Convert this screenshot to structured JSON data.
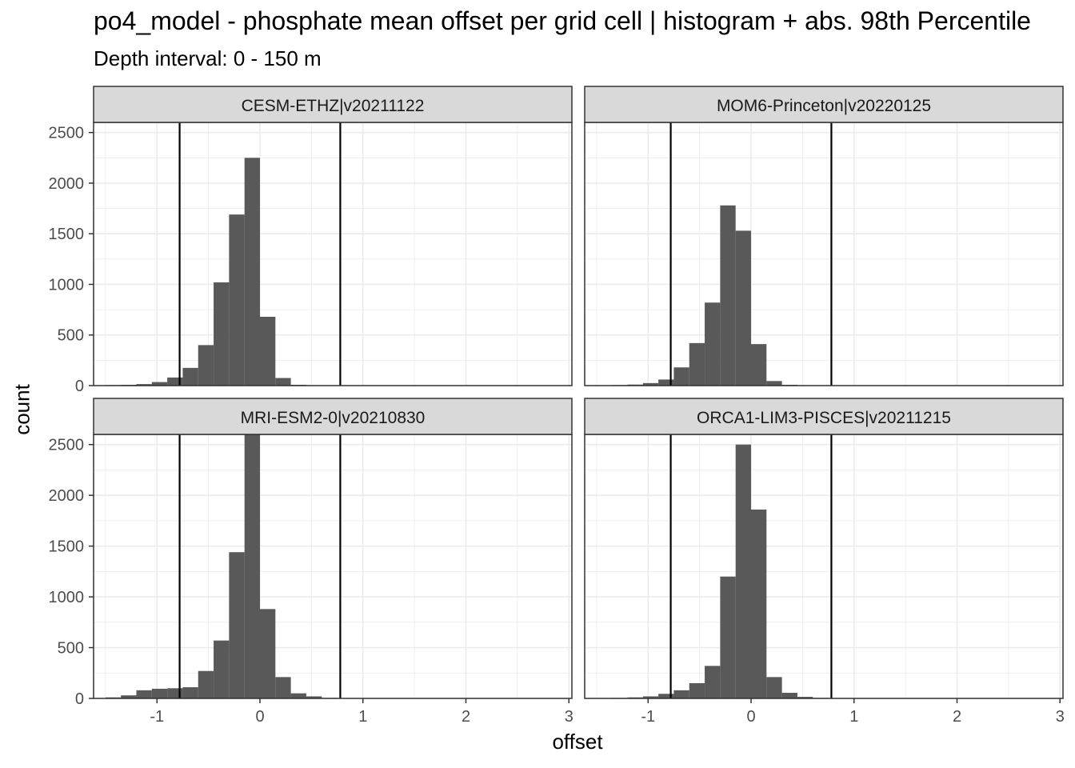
{
  "chart_data": {
    "type": "bar",
    "title": "po4_model  -  phosphate mean offset per grid cell | histogram + abs. 98th Percentile",
    "subtitle": "Depth interval: 0 - 150 m",
    "xlabel": "offset",
    "ylabel": "count",
    "xlim": [
      -1.5,
      3.0
    ],
    "ylim": [
      0,
      2600
    ],
    "x_ticks": [
      -1,
      0,
      1,
      2,
      3
    ],
    "y_ticks": [
      0,
      500,
      1000,
      1500,
      2000,
      2500
    ],
    "bin_width": 0.15,
    "bin_start": -1.5,
    "grid": true,
    "colors": {
      "bar": "#595959",
      "vline": "#000000",
      "strip": "#d9d9d9",
      "grid": "#ebebeb",
      "border": "#333333"
    },
    "panels": [
      {
        "name": "CESM-ETHZ|v20211122",
        "percentile_lines": [
          -0.78,
          0.78
        ],
        "counts": [
          5,
          8,
          15,
          35,
          80,
          175,
          400,
          1020,
          1690,
          2250,
          680,
          75,
          8,
          3,
          2,
          1,
          1,
          0,
          0,
          0,
          0,
          0,
          0,
          0,
          0,
          0,
          0,
          0,
          0,
          0
        ]
      },
      {
        "name": "MOM6-Princeton|v20220125",
        "percentile_lines": [
          -0.78,
          0.78
        ],
        "counts": [
          3,
          5,
          10,
          25,
          60,
          180,
          420,
          820,
          1780,
          1530,
          410,
          45,
          8,
          3,
          2,
          1,
          1,
          0,
          0,
          0,
          0,
          0,
          0,
          0,
          0,
          0,
          0,
          0,
          0,
          0
        ]
      },
      {
        "name": "MRI-ESM2-0|v20210830",
        "percentile_lines": [
          -0.78,
          0.78
        ],
        "counts": [
          10,
          30,
          80,
          95,
          100,
          110,
          270,
          570,
          1440,
          2600,
          880,
          210,
          50,
          20,
          5,
          3,
          2,
          1,
          0,
          0,
          0,
          0,
          0,
          0,
          0,
          0,
          0,
          0,
          0,
          0
        ]
      },
      {
        "name": "ORCA1-LIM3-PISCES|v20211215",
        "percentile_lines": [
          -0.78,
          0.78
        ],
        "counts": [
          3,
          5,
          10,
          20,
          45,
          80,
          150,
          320,
          1200,
          2500,
          1860,
          210,
          55,
          15,
          5,
          2,
          1,
          0,
          0,
          0,
          0,
          0,
          0,
          0,
          0,
          0,
          0,
          0,
          0,
          0
        ]
      }
    ]
  }
}
